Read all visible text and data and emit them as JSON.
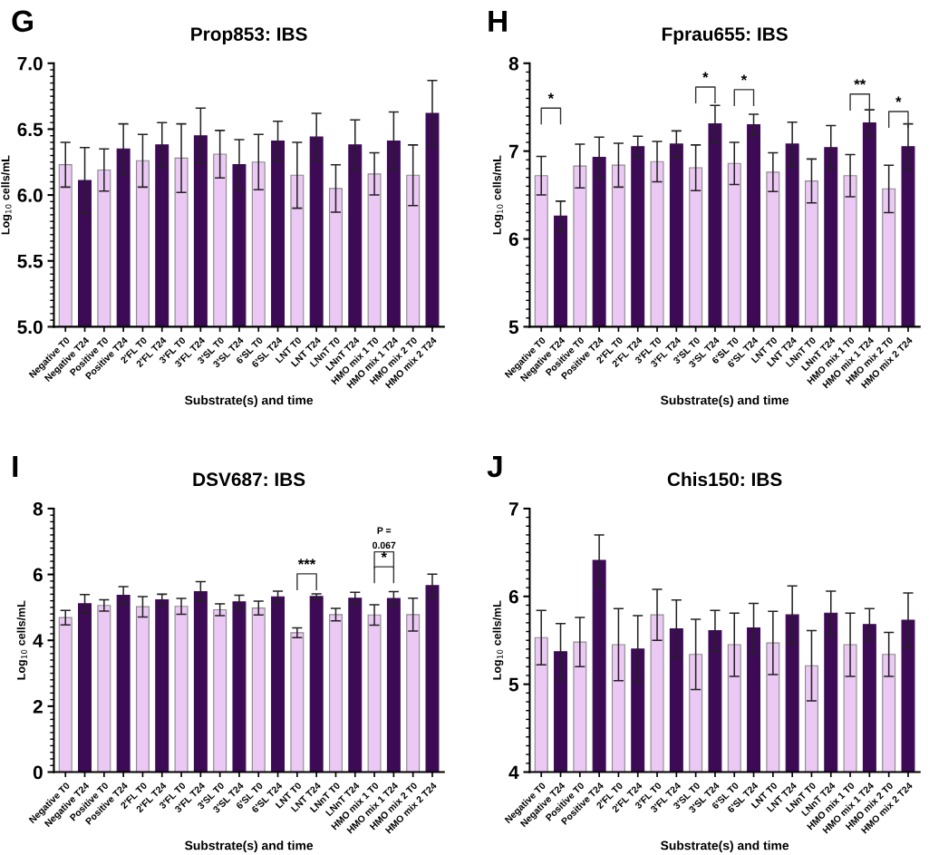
{
  "chart_data": [
    {
      "type": "bar",
      "title": "Prop853: IBS",
      "xlabel": "Substrate(s) and time",
      "ylabel": "Log$_{10}$ cells/mL",
      "categories": [
        "Negative T0",
        "Negative T24",
        "Positive T0",
        "Positive T24",
        "2'FL T0",
        "2'FL T24",
        "3'FL T0",
        "3'FL T24",
        "3'SL T0",
        "3'SL T24",
        "6'SL T0",
        "6'SL T24",
        "LNT T0",
        "LNT T24",
        "LNnT T0",
        "LNnT T24",
        "HMO mix 1 T0",
        "HMO mix 1 T24",
        "HMO mix 2 T0",
        "HMO mix 2 T24"
      ],
      "values": [
        6.23,
        6.11,
        6.19,
        6.35,
        6.26,
        6.38,
        6.28,
        6.45,
        6.31,
        6.23,
        6.25,
        6.41,
        6.15,
        6.44,
        6.05,
        6.38,
        6.16,
        6.41,
        6.15,
        6.62
      ],
      "errors": [
        0.17,
        0.25,
        0.16,
        0.19,
        0.2,
        0.17,
        0.26,
        0.21,
        0.18,
        0.19,
        0.21,
        0.15,
        0.25,
        0.18,
        0.18,
        0.19,
        0.16,
        0.22,
        0.23,
        0.25
      ],
      "colors": [
        "#ecc8f5",
        "#3d0a55",
        "#ecc8f5",
        "#3d0a55",
        "#ecc8f5",
        "#3d0a55",
        "#ecc8f5",
        "#3d0a55",
        "#ecc8f5",
        "#3d0a55",
        "#ecc8f5",
        "#3d0a55",
        "#ecc8f5",
        "#3d0a55",
        "#ecc8f5",
        "#3d0a55",
        "#ecc8f5",
        "#3d0a55",
        "#ecc8f5",
        "#3d0a55"
      ],
      "ylim": [
        5.0,
        7.0
      ],
      "yticks": [
        {
          "value": 5.0,
          "label": "5.0"
        },
        {
          "value": 5.5,
          "label": "5.5"
        },
        {
          "value": 6.0,
          "label": "6.0"
        },
        {
          "value": 6.5,
          "label": "6.5"
        },
        {
          "value": 7.0,
          "label": "7.0"
        }
      ],
      "grid": false,
      "legend": false,
      "annotations": [
        "G"
      ]
    },
    {
      "type": "bar",
      "title": "Fprau655: IBS",
      "xlabel": "Substrate(s) and time",
      "ylabel": "Log$_{10}$ cells/mL",
      "categories": [
        "Negative T0",
        "Negative T24",
        "Positive T0",
        "Positive T24",
        "2'FL T0",
        "2'FL T24",
        "3'FL T0",
        "3'FL T24",
        "3'SL T0",
        "3'SL T24",
        "6'SL T0",
        "6'SL T24",
        "LNT T0",
        "LNT T24",
        "LNnT T0",
        "LNnT T24",
        "HMO mix 1 T0",
        "HMO mix 1 T24",
        "HMO mix 2 T0",
        "HMO mix 2 T24"
      ],
      "values": [
        6.72,
        6.26,
        6.83,
        6.93,
        6.84,
        7.05,
        6.88,
        7.08,
        6.81,
        7.31,
        6.86,
        7.3,
        6.76,
        7.08,
        6.66,
        7.04,
        6.72,
        7.32,
        6.57,
        7.05
      ],
      "errors": [
        0.22,
        0.17,
        0.25,
        0.23,
        0.25,
        0.12,
        0.23,
        0.15,
        0.26,
        0.21,
        0.24,
        0.12,
        0.22,
        0.25,
        0.25,
        0.25,
        0.24,
        0.15,
        0.27,
        0.26
      ],
      "colors": [
        "#ecc8f5",
        "#3d0a55",
        "#ecc8f5",
        "#3d0a55",
        "#ecc8f5",
        "#3d0a55",
        "#ecc8f5",
        "#3d0a55",
        "#ecc8f5",
        "#3d0a55",
        "#ecc8f5",
        "#3d0a55",
        "#ecc8f5",
        "#3d0a55",
        "#ecc8f5",
        "#3d0a55",
        "#ecc8f5",
        "#3d0a55",
        "#ecc8f5",
        "#3d0a55"
      ],
      "ylim": [
        5,
        8
      ],
      "yticks": [
        5,
        6,
        7,
        8
      ],
      "grid": false,
      "legend": false,
      "annotations": [
        "H",
        "*",
        "*",
        "*",
        "**",
        "*"
      ]
    },
    {
      "type": "bar",
      "title": "DSV687: IBS",
      "xlabel": "Substrate(s) and time",
      "ylabel": "Log$_{10}$ cells/mL",
      "categories": [
        "Negative T0",
        "Negative T24",
        "Positive T0",
        "Positive T24",
        "2'FL T0",
        "2'FL T24",
        "3'FL T0",
        "3'FL T24",
        "3'SL T0",
        "3'SL T24",
        "6'SL T0",
        "6'SL T24",
        "LNT T0",
        "LNT T24",
        "LNnT T0",
        "LNnT T24",
        "HMO mix 1 T0",
        "HMO mix 1 T24",
        "HMO mix 2 T0",
        "HMO mix 2 T24"
      ],
      "values": [
        4.69,
        5.11,
        5.06,
        5.37,
        5.02,
        5.23,
        5.03,
        5.48,
        4.93,
        5.17,
        4.98,
        5.32,
        4.23,
        5.33,
        4.78,
        5.28,
        4.77,
        5.27,
        4.78,
        5.66
      ],
      "errors": [
        0.22,
        0.28,
        0.17,
        0.26,
        0.31,
        0.17,
        0.24,
        0.3,
        0.18,
        0.2,
        0.21,
        0.17,
        0.15,
        0.08,
        0.19,
        0.18,
        0.31,
        0.21,
        0.5,
        0.35
      ],
      "colors": [
        "#ecc8f5",
        "#3d0a55",
        "#ecc8f5",
        "#3d0a55",
        "#ecc8f5",
        "#3d0a55",
        "#ecc8f5",
        "#3d0a55",
        "#ecc8f5",
        "#3d0a55",
        "#ecc8f5",
        "#3d0a55",
        "#ecc8f5",
        "#3d0a55",
        "#ecc8f5",
        "#3d0a55",
        "#ecc8f5",
        "#3d0a55",
        "#ecc8f5",
        "#3d0a55"
      ],
      "ylim": [
        0,
        8
      ],
      "yticks": [
        0,
        2,
        4,
        6,
        8
      ],
      "grid": false,
      "legend": false,
      "annotations": [
        "I",
        "***",
        "*",
        "P =",
        "0.067"
      ]
    },
    {
      "type": "bar",
      "title": "Chis150: IBS",
      "xlabel": "Substrate(s) and time",
      "ylabel": "Log$_{10}$ cells/mL",
      "categories": [
        "Negative T0",
        "Negative T24",
        "Positive T0",
        "Positive T24",
        "2'FL T0",
        "2'FL T24",
        "3'FL T0",
        "3'FL T24",
        "3'SL T0",
        "3'SL T24",
        "6'SL T0",
        "6'SL T24",
        "LNT T0",
        "LNT T24",
        "LNnT T0",
        "LNnT T24",
        "HMO mix 1 T0",
        "HMO mix 1 T24",
        "HMO mix 2 T0",
        "HMO mix 2 T24"
      ],
      "values": [
        5.53,
        5.37,
        5.48,
        6.41,
        5.45,
        5.4,
        5.79,
        5.63,
        5.34,
        5.61,
        5.45,
        5.64,
        5.47,
        5.79,
        5.21,
        5.81,
        5.45,
        5.68,
        5.34,
        5.73
      ],
      "errors": [
        0.31,
        0.32,
        0.28,
        0.29,
        0.41,
        0.38,
        0.29,
        0.33,
        0.4,
        0.23,
        0.36,
        0.28,
        0.36,
        0.33,
        0.4,
        0.25,
        0.36,
        0.18,
        0.25,
        0.31
      ],
      "colors": [
        "#ecc8f5",
        "#3d0a55",
        "#ecc8f5",
        "#3d0a55",
        "#ecc8f5",
        "#3d0a55",
        "#ecc8f5",
        "#3d0a55",
        "#ecc8f5",
        "#3d0a55",
        "#ecc8f5",
        "#3d0a55",
        "#ecc8f5",
        "#3d0a55",
        "#ecc8f5",
        "#3d0a55",
        "#ecc8f5",
        "#3d0a55",
        "#ecc8f5",
        "#3d0a55"
      ],
      "ylim": [
        4,
        7
      ],
      "yticks": [
        4,
        5,
        6,
        7
      ],
      "grid": false,
      "legend": false,
      "annotations": [
        "J"
      ]
    }
  ]
}
